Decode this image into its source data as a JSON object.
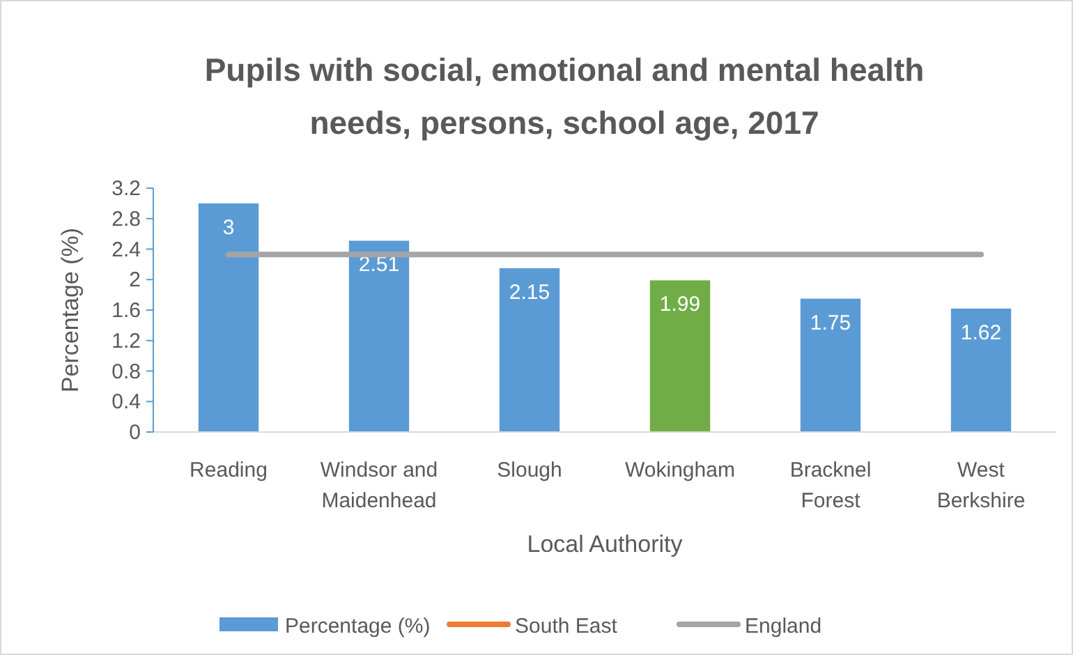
{
  "chart_data": {
    "type": "bar",
    "title": "Pupils with social, emotional and mental health needs, persons, school age, 2017",
    "xlabel": "Local Authority",
    "ylabel": "Percentage (%)",
    "categories": [
      "Reading",
      "Windsor and Maidenhead",
      "Slough",
      "Wokingham",
      "Bracknel Forest",
      "West Berkshire"
    ],
    "series": [
      {
        "name": "Percentage (%)",
        "color": "#5b9bd5",
        "colors": [
          "#5b9bd5",
          "#5b9bd5",
          "#5b9bd5",
          "#70ad47",
          "#5b9bd5",
          "#5b9bd5"
        ],
        "values": [
          3,
          2.51,
          2.15,
          1.99,
          1.75,
          1.62
        ],
        "value_labels": [
          "3",
          "2.51",
          "2.15",
          "1.99",
          "1.75",
          "1.62"
        ]
      },
      {
        "name": "South East",
        "type": "line",
        "color": "#ed7d31",
        "values": [
          null,
          null,
          null,
          null,
          null,
          null
        ]
      },
      {
        "name": "England",
        "type": "line",
        "color": "#a5a5a5",
        "values": [
          2.33,
          2.33,
          2.33,
          2.33,
          2.33,
          2.33
        ]
      }
    ],
    "ylim": [
      0,
      3.2
    ],
    "yticks": [
      0,
      0.4,
      0.8,
      1.2,
      1.6,
      2,
      2.4,
      2.8,
      3.2
    ],
    "grid": false,
    "legend": "bottom"
  }
}
